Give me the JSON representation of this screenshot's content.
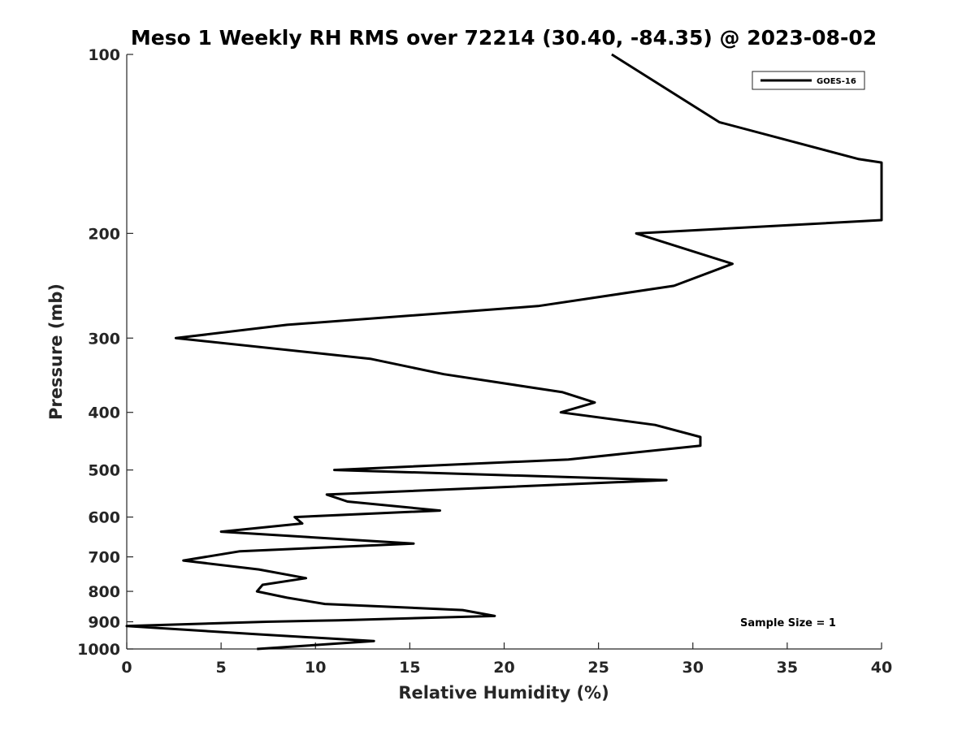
{
  "chart_data": {
    "type": "line",
    "title": "Meso 1 Weekly RH RMS over 72214 (30.40, -84.35) @ 2023-08-02",
    "xlabel": "Relative Humidity (%)",
    "ylabel": "Pressure (mb)",
    "xlim": [
      0,
      40
    ],
    "ylim": [
      100,
      1000
    ],
    "y_scale": "log",
    "y_reversed": true,
    "x_ticks": [
      "0",
      "5",
      "10",
      "15",
      "20",
      "25",
      "30",
      "35",
      "40"
    ],
    "y_ticks": [
      "100",
      "200",
      "300",
      "400",
      "500",
      "600",
      "700",
      "800",
      "900",
      "1000"
    ],
    "grid": false,
    "legend_position": "top-right",
    "annotation": "Sample Size = 1",
    "line_color": "#000000",
    "series": [
      {
        "name": "GOES-16",
        "x": [
          25.7,
          31.4,
          38.8,
          40.0,
          40.0,
          27.0,
          32.1,
          29.0,
          21.8,
          8.5,
          2.6,
          12.9,
          16.8,
          23.1,
          24.8,
          23.0,
          28.0,
          30.4,
          30.4,
          23.4,
          11.0,
          28.6,
          10.6,
          11.7,
          16.6,
          8.9,
          9.3,
          5.0,
          15.2,
          6.0,
          3.0,
          7.0,
          9.5,
          7.2,
          6.9,
          8.5,
          10.5,
          17.8,
          19.5,
          11.2,
          7.4,
          0.0,
          7.0,
          13.1,
          6.9
        ],
        "y": [
          100,
          130,
          150,
          152,
          190,
          200,
          225,
          245,
          265,
          285,
          300,
          325,
          345,
          370,
          385,
          400,
          420,
          440,
          455,
          480,
          500,
          520,
          550,
          565,
          585,
          600,
          615,
          635,
          665,
          685,
          710,
          735,
          760,
          780,
          800,
          820,
          840,
          860,
          880,
          895,
          900,
          915,
          945,
          970,
          1000
        ]
      }
    ]
  }
}
